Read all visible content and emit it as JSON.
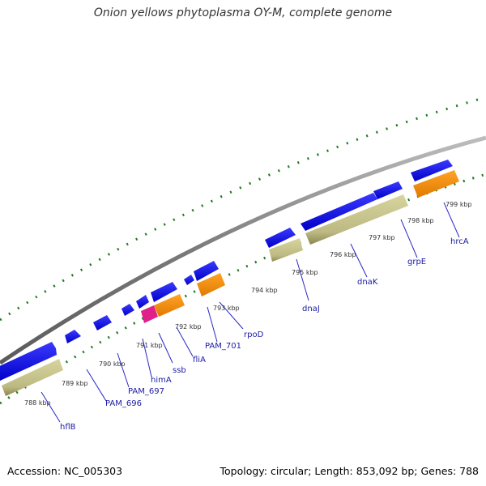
{
  "title": "Onion yellows phytoplasma OY-M, complete genome",
  "footer": {
    "accession": "Accession: NC_005303",
    "summary": "Topology: circular; Length: 853,092 bp; Genes: 788"
  },
  "colors": {
    "background": "#ffffff",
    "backbone": "#7f7f7f",
    "gc_ticks": "#1f7a1f",
    "cds_forward": "#1010e0",
    "cds_reverse_orange": "#f08a10",
    "cds_reverse_magenta": "#e0208a",
    "rna_khaki": "#c4c088",
    "label_line": "#2828c8",
    "label_text": "#1a1aa6"
  },
  "kbp_labels": [
    "788 kbp",
    "789 kbp",
    "790 kbp",
    "791 kbp",
    "792 kbp",
    "793 kbp",
    "794 kbp",
    "795 kbp",
    "796 kbp",
    "797 kbp",
    "798 kbp",
    "799 kbp"
  ],
  "genes": [
    "hflB",
    "PAM_696",
    "PAM_697",
    "himA",
    "ssb",
    "fliA",
    "PAM_701",
    "rpoD",
    "dnaJ",
    "dnaK",
    "grpE",
    "hrcA"
  ]
}
